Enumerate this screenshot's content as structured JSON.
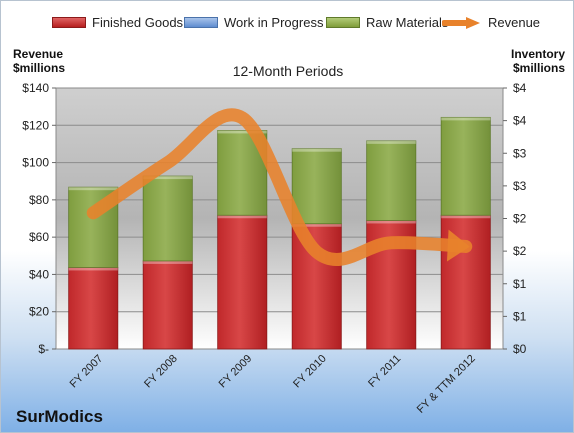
{
  "legend": {
    "finished": "Finished Goods",
    "wip": "Work in Progress",
    "raw": "Raw Materials",
    "revenue": "Revenue"
  },
  "left_axis_title": [
    "Revenue",
    "$millions"
  ],
  "right_axis_title": [
    "Inventory",
    "$millions"
  ],
  "brand": "SurModics",
  "colors": {
    "finished": "#c0282b",
    "wip": "#5f8ccf",
    "raw": "#8aa84a",
    "revenue": "#e8822b"
  },
  "chart_data": {
    "type": "bar",
    "stacked": true,
    "title": "12-Month Periods",
    "categories": [
      "FY 2007",
      "FY 2008",
      "FY 2009",
      "FY 2010",
      "FY 2011",
      "FY & TTM 2012"
    ],
    "series": [
      {
        "name": "Finished Goods",
        "axis": "right",
        "values": [
          1.25,
          1.35,
          2.05,
          1.92,
          1.97,
          2.05
        ]
      },
      {
        "name": "Work in Progress",
        "axis": "right",
        "values": [
          0,
          0,
          0,
          0,
          0,
          0
        ]
      },
      {
        "name": "Raw Materials",
        "axis": "right",
        "values": [
          1.23,
          1.3,
          1.3,
          1.15,
          1.22,
          1.5
        ]
      },
      {
        "name": "Revenue",
        "axis": "left",
        "type": "line",
        "values": [
          73,
          100,
          124,
          52,
          57,
          55
        ]
      }
    ],
    "y_left": {
      "ylim": [
        0,
        140
      ],
      "ticks": [
        "$-",
        "$20",
        "$40",
        "$60",
        "$80",
        "$100",
        "$120",
        "$140"
      ]
    },
    "y_right": {
      "ylim": [
        0,
        4
      ],
      "ticks": [
        "$0",
        "$1",
        "$1",
        "$2",
        "$2",
        "$3",
        "$3",
        "$4",
        "$4"
      ]
    },
    "grid": true,
    "legend_position": "top"
  }
}
